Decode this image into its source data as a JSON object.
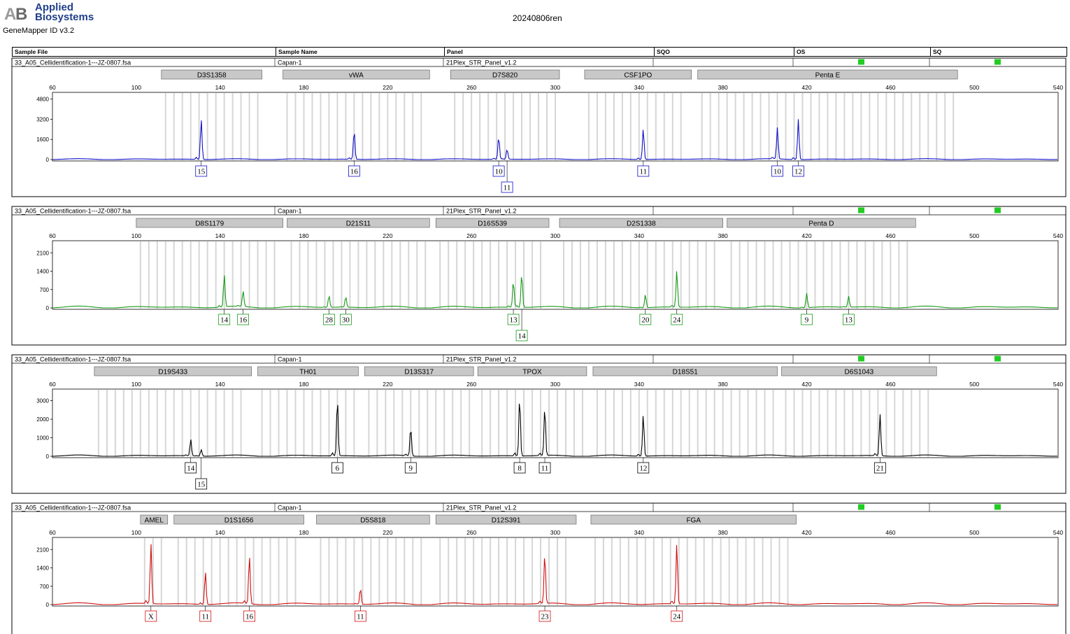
{
  "header": {
    "brand_line1": "Applied",
    "brand_line2": "Biosystems",
    "product": "GeneMapper ID v3.2",
    "run_name": "20240806ren"
  },
  "table_columns": [
    "Sample File",
    "Sample Name",
    "Panel",
    "SQO",
    "OS",
    "SQ"
  ],
  "colors": {
    "blue": "#1010c8",
    "green": "#169a16",
    "black": "#000000",
    "red": "#d01010",
    "quality_flag": "#22cc22",
    "bin": "#d6d6d6",
    "marker_box": "#c8c8c8"
  },
  "chart_data": [
    {
      "type": "line",
      "dye": "blue",
      "sample_file": "33_A05_Cellidentification-1---JZ-0807.fsa",
      "sample_name": "Capan-1",
      "panel": "21Plex_STR_Panel_v1.2",
      "x_ticks": [
        "60",
        "100",
        "140",
        "180",
        "220",
        "260",
        "300",
        "340",
        "380",
        "420",
        "460",
        "500",
        "540"
      ],
      "xlim": [
        60,
        540
      ],
      "y_ticks": [
        "0",
        "1600",
        "3200",
        "4800"
      ],
      "ylim": [
        0,
        5000
      ],
      "markers": [
        {
          "name": "D3S1358",
          "start": 112,
          "end": 160
        },
        {
          "name": "vWA",
          "start": 170,
          "end": 240
        },
        {
          "name": "D7S820",
          "start": 250,
          "end": 302
        },
        {
          "name": "CSF1PO",
          "start": 314,
          "end": 365
        },
        {
          "name": "Penta E",
          "start": 368,
          "end": 492
        }
      ],
      "peaks": [
        {
          "x": 131,
          "y": 3200
        },
        {
          "x": 204,
          "y": 2300
        },
        {
          "x": 273,
          "y": 1800
        },
        {
          "x": 277,
          "y": 800
        },
        {
          "x": 342,
          "y": 2450
        },
        {
          "x": 406,
          "y": 2500
        },
        {
          "x": 416,
          "y": 3200
        }
      ],
      "alleles": [
        {
          "label": "15",
          "x": 131
        },
        {
          "label": "16",
          "x": 204
        },
        {
          "label": "10",
          "x": 273
        },
        {
          "label": "11",
          "x": 277
        },
        {
          "label": "11",
          "x": 342
        },
        {
          "label": "10",
          "x": 406
        },
        {
          "label": "12",
          "x": 416
        }
      ]
    },
    {
      "type": "line",
      "dye": "green",
      "sample_file": "33_A05_Cellidentification-1---JZ-0807.fsa",
      "sample_name": "Capan-1",
      "panel": "21Plex_STR_Panel_v1.2",
      "x_ticks": [
        "60",
        "100",
        "140",
        "180",
        "220",
        "260",
        "300",
        "340",
        "380",
        "420",
        "460",
        "500",
        "540"
      ],
      "xlim": [
        60,
        540
      ],
      "y_ticks": [
        "0",
        "700",
        "1400",
        "2100"
      ],
      "ylim": [
        0,
        2400
      ],
      "markers": [
        {
          "name": "D8S1179",
          "start": 100,
          "end": 170
        },
        {
          "name": "D21S11",
          "start": 172,
          "end": 240
        },
        {
          "name": "D16S539",
          "start": 243,
          "end": 297
        },
        {
          "name": "D2S1338",
          "start": 302,
          "end": 380
        },
        {
          "name": "Penta D",
          "start": 382,
          "end": 472
        }
      ],
      "peaks": [
        {
          "x": 142,
          "y": 1250
        },
        {
          "x": 151,
          "y": 600
        },
        {
          "x": 192,
          "y": 450
        },
        {
          "x": 200,
          "y": 400
        },
        {
          "x": 280,
          "y": 1000
        },
        {
          "x": 284,
          "y": 1300
        },
        {
          "x": 343,
          "y": 500
        },
        {
          "x": 358,
          "y": 1400
        },
        {
          "x": 420,
          "y": 550
        },
        {
          "x": 440,
          "y": 420
        }
      ],
      "alleles": [
        {
          "label": "14",
          "x": 142
        },
        {
          "label": "16",
          "x": 151
        },
        {
          "label": "28",
          "x": 192
        },
        {
          "label": "30",
          "x": 200
        },
        {
          "label": "13",
          "x": 280
        },
        {
          "label": "14",
          "x": 284
        },
        {
          "label": "20",
          "x": 343
        },
        {
          "label": "24",
          "x": 358
        },
        {
          "label": "9",
          "x": 420
        },
        {
          "label": "13",
          "x": 440
        }
      ]
    },
    {
      "type": "line",
      "dye": "black",
      "sample_file": "33_A05_Cellidentification-1---JZ-0807.fsa",
      "sample_name": "Capan-1",
      "panel": "21Plex_STR_Panel_v1.2",
      "x_ticks": [
        "60",
        "100",
        "140",
        "180",
        "220",
        "260",
        "300",
        "340",
        "380",
        "420",
        "460",
        "500",
        "540"
      ],
      "xlim": [
        60,
        540
      ],
      "y_ticks": [
        "0",
        "1000",
        "2000",
        "3000"
      ],
      "ylim": [
        0,
        3400
      ],
      "markers": [
        {
          "name": "D19S433",
          "start": 80,
          "end": 155
        },
        {
          "name": "TH01",
          "start": 158,
          "end": 206
        },
        {
          "name": "D13S317",
          "start": 209,
          "end": 261
        },
        {
          "name": "TPOX",
          "start": 263,
          "end": 315
        },
        {
          "name": "D18S51",
          "start": 318,
          "end": 406
        },
        {
          "name": "D6S1043",
          "start": 408,
          "end": 482
        }
      ],
      "peaks": [
        {
          "x": 126,
          "y": 900
        },
        {
          "x": 131,
          "y": 350
        },
        {
          "x": 196,
          "y": 3100
        },
        {
          "x": 231,
          "y": 1550
        },
        {
          "x": 283,
          "y": 3200
        },
        {
          "x": 295,
          "y": 2600
        },
        {
          "x": 342,
          "y": 2250
        },
        {
          "x": 455,
          "y": 2250
        }
      ],
      "alleles": [
        {
          "label": "14",
          "x": 126
        },
        {
          "label": "15",
          "x": 131
        },
        {
          "label": "6",
          "x": 196
        },
        {
          "label": "9",
          "x": 231
        },
        {
          "label": "8",
          "x": 283
        },
        {
          "label": "11",
          "x": 295
        },
        {
          "label": "12",
          "x": 342
        },
        {
          "label": "21",
          "x": 455
        }
      ]
    },
    {
      "type": "line",
      "dye": "red",
      "sample_file": "33_A05_Cellidentification-1---JZ-0807.fsa",
      "sample_name": "Capan-1",
      "panel": "21Plex_STR_Panel_v1.2",
      "x_ticks": [
        "60",
        "100",
        "140",
        "180",
        "220",
        "260",
        "300",
        "340",
        "380",
        "420",
        "460",
        "500",
        "540"
      ],
      "xlim": [
        60,
        540
      ],
      "y_ticks": [
        "0",
        "700",
        "1400",
        "2100"
      ],
      "ylim": [
        0,
        2400
      ],
      "markers": [
        {
          "name": "AMEL",
          "start": 102,
          "end": 115
        },
        {
          "name": "D1S1656",
          "start": 118,
          "end": 180
        },
        {
          "name": "D5S818",
          "start": 186,
          "end": 240
        },
        {
          "name": "D12S391",
          "start": 243,
          "end": 310
        },
        {
          "name": "FGA",
          "start": 317,
          "end": 415
        }
      ],
      "peaks": [
        {
          "x": 107,
          "y": 2300
        },
        {
          "x": 133,
          "y": 1250
        },
        {
          "x": 154,
          "y": 1850
        },
        {
          "x": 207,
          "y": 600
        },
        {
          "x": 295,
          "y": 1900
        },
        {
          "x": 358,
          "y": 2300
        }
      ],
      "alleles": [
        {
          "label": "X",
          "x": 107
        },
        {
          "label": "11",
          "x": 133
        },
        {
          "label": "16",
          "x": 154
        },
        {
          "label": "11",
          "x": 207
        },
        {
          "label": "23",
          "x": 295
        },
        {
          "label": "24",
          "x": 358
        }
      ]
    }
  ]
}
